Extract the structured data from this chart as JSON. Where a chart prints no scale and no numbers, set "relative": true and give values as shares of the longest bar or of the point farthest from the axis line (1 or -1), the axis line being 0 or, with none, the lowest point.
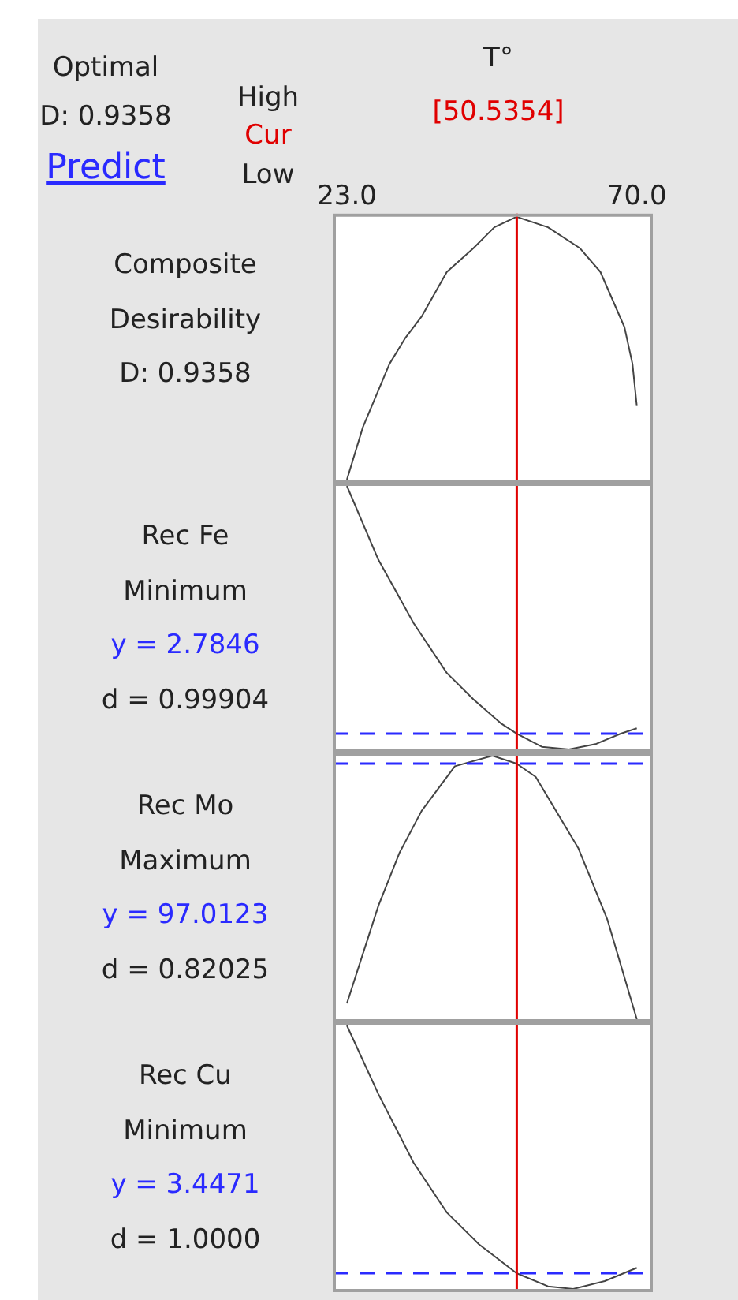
{
  "chart_data": [
    {
      "type": "line",
      "xlabel": "T°",
      "ylabel": "Composite Desirability",
      "annotations": [
        "Optimal",
        "D: 0.9358",
        "Predict",
        "High",
        "Cur",
        "Low",
        "D: 0.9358"
      ],
      "relative": true,
      "xlim": [
        20.7,
        72.6
      ],
      "xticks": [
        {
          "value": 23,
          "label": "23.0"
        },
        {
          "value": 70,
          "label": "70.0"
        }
      ],
      "tick_labels": "x",
      "marker": "none",
      "line_style": "solid",
      "series": [
        {
          "color": "#444444",
          "x": [
            23,
            25.6,
            29.9,
            32.5,
            35.1,
            39.2,
            43.5,
            46.9,
            50.5,
            55.6,
            60.8,
            64.1,
            68.0,
            69.3,
            70
          ],
          "values": [
            0,
            0.2,
            0.44,
            0.54,
            0.62,
            0.79,
            0.88,
            0.96,
            1,
            0.96,
            0.88,
            0.79,
            0.58,
            0.44,
            0.28
          ]
        }
      ],
      "ref_lines": [
        {
          "axis": "x",
          "value": 50.5354,
          "label": "[50.5354]",
          "color": "#e00000",
          "line_style": "solid"
        }
      ]
    },
    {
      "type": "line",
      "ylabel": "Rec Fe",
      "annotations": [
        "Minimum",
        "y = 2.7846",
        "d = 0.99904"
      ],
      "relative": true,
      "xlim": [
        20.7,
        72.6
      ],
      "tick_labels": false,
      "marker": "none",
      "line_style": "solid",
      "series": [
        {
          "color": "#444444",
          "x": [
            23,
            28.1,
            33.8,
            39.2,
            43.5,
            47.9,
            50.5,
            54.6,
            59.0,
            63.3,
            67.4,
            70
          ],
          "values": [
            1,
            0.72,
            0.48,
            0.29,
            0.19,
            0.1,
            0.06,
            0.01,
            0,
            0.02,
            0.06,
            0.08
          ]
        }
      ],
      "ref_lines": [
        {
          "axis": "x",
          "value": 50.5354,
          "color": "#e00000",
          "line_style": "solid"
        },
        {
          "axis": "y",
          "value": 0.06,
          "color": "#2a2aff",
          "line_style": "dashed"
        }
      ]
    },
    {
      "type": "line",
      "ylabel": "Rec Mo",
      "annotations": [
        "Maximum",
        "y = 97.0123",
        "d = 0.82025"
      ],
      "relative": true,
      "xlim": [
        20.7,
        72.6
      ],
      "tick_labels": false,
      "marker": "none",
      "line_style": "solid",
      "series": [
        {
          "color": "#444444",
          "x": [
            23,
            28.1,
            31.5,
            35.1,
            40.5,
            46.6,
            50.5,
            53.6,
            60.5,
            65.2,
            70
          ],
          "values": [
            0.06,
            0.43,
            0.63,
            0.79,
            0.96,
            1,
            0.97,
            0.92,
            0.65,
            0.38,
            0
          ]
        }
      ],
      "ref_lines": [
        {
          "axis": "x",
          "value": 50.5354,
          "color": "#e00000",
          "line_style": "solid"
        },
        {
          "axis": "y",
          "value": 0.97,
          "color": "#2a2aff",
          "line_style": "dashed"
        }
      ]
    },
    {
      "type": "line",
      "ylabel": "Rec Cu",
      "annotations": [
        "Minimum",
        "y = 3.4471",
        "d = 1.0000"
      ],
      "relative": true,
      "xlim": [
        20.7,
        72.6
      ],
      "tick_labels": false,
      "marker": "none",
      "line_style": "solid",
      "series": [
        {
          "color": "#444444",
          "x": [
            23,
            28.1,
            33.8,
            39.2,
            44.4,
            50.5,
            55.6,
            59.7,
            64.8,
            70
          ],
          "values": [
            1,
            0.74,
            0.48,
            0.29,
            0.17,
            0.06,
            0.01,
            0,
            0.03,
            0.08
          ]
        }
      ],
      "ref_lines": [
        {
          "axis": "x",
          "value": 50.5354,
          "color": "#e00000",
          "line_style": "solid"
        },
        {
          "axis": "y",
          "value": 0.06,
          "color": "#2a2aff",
          "line_style": "dashed"
        }
      ]
    }
  ]
}
